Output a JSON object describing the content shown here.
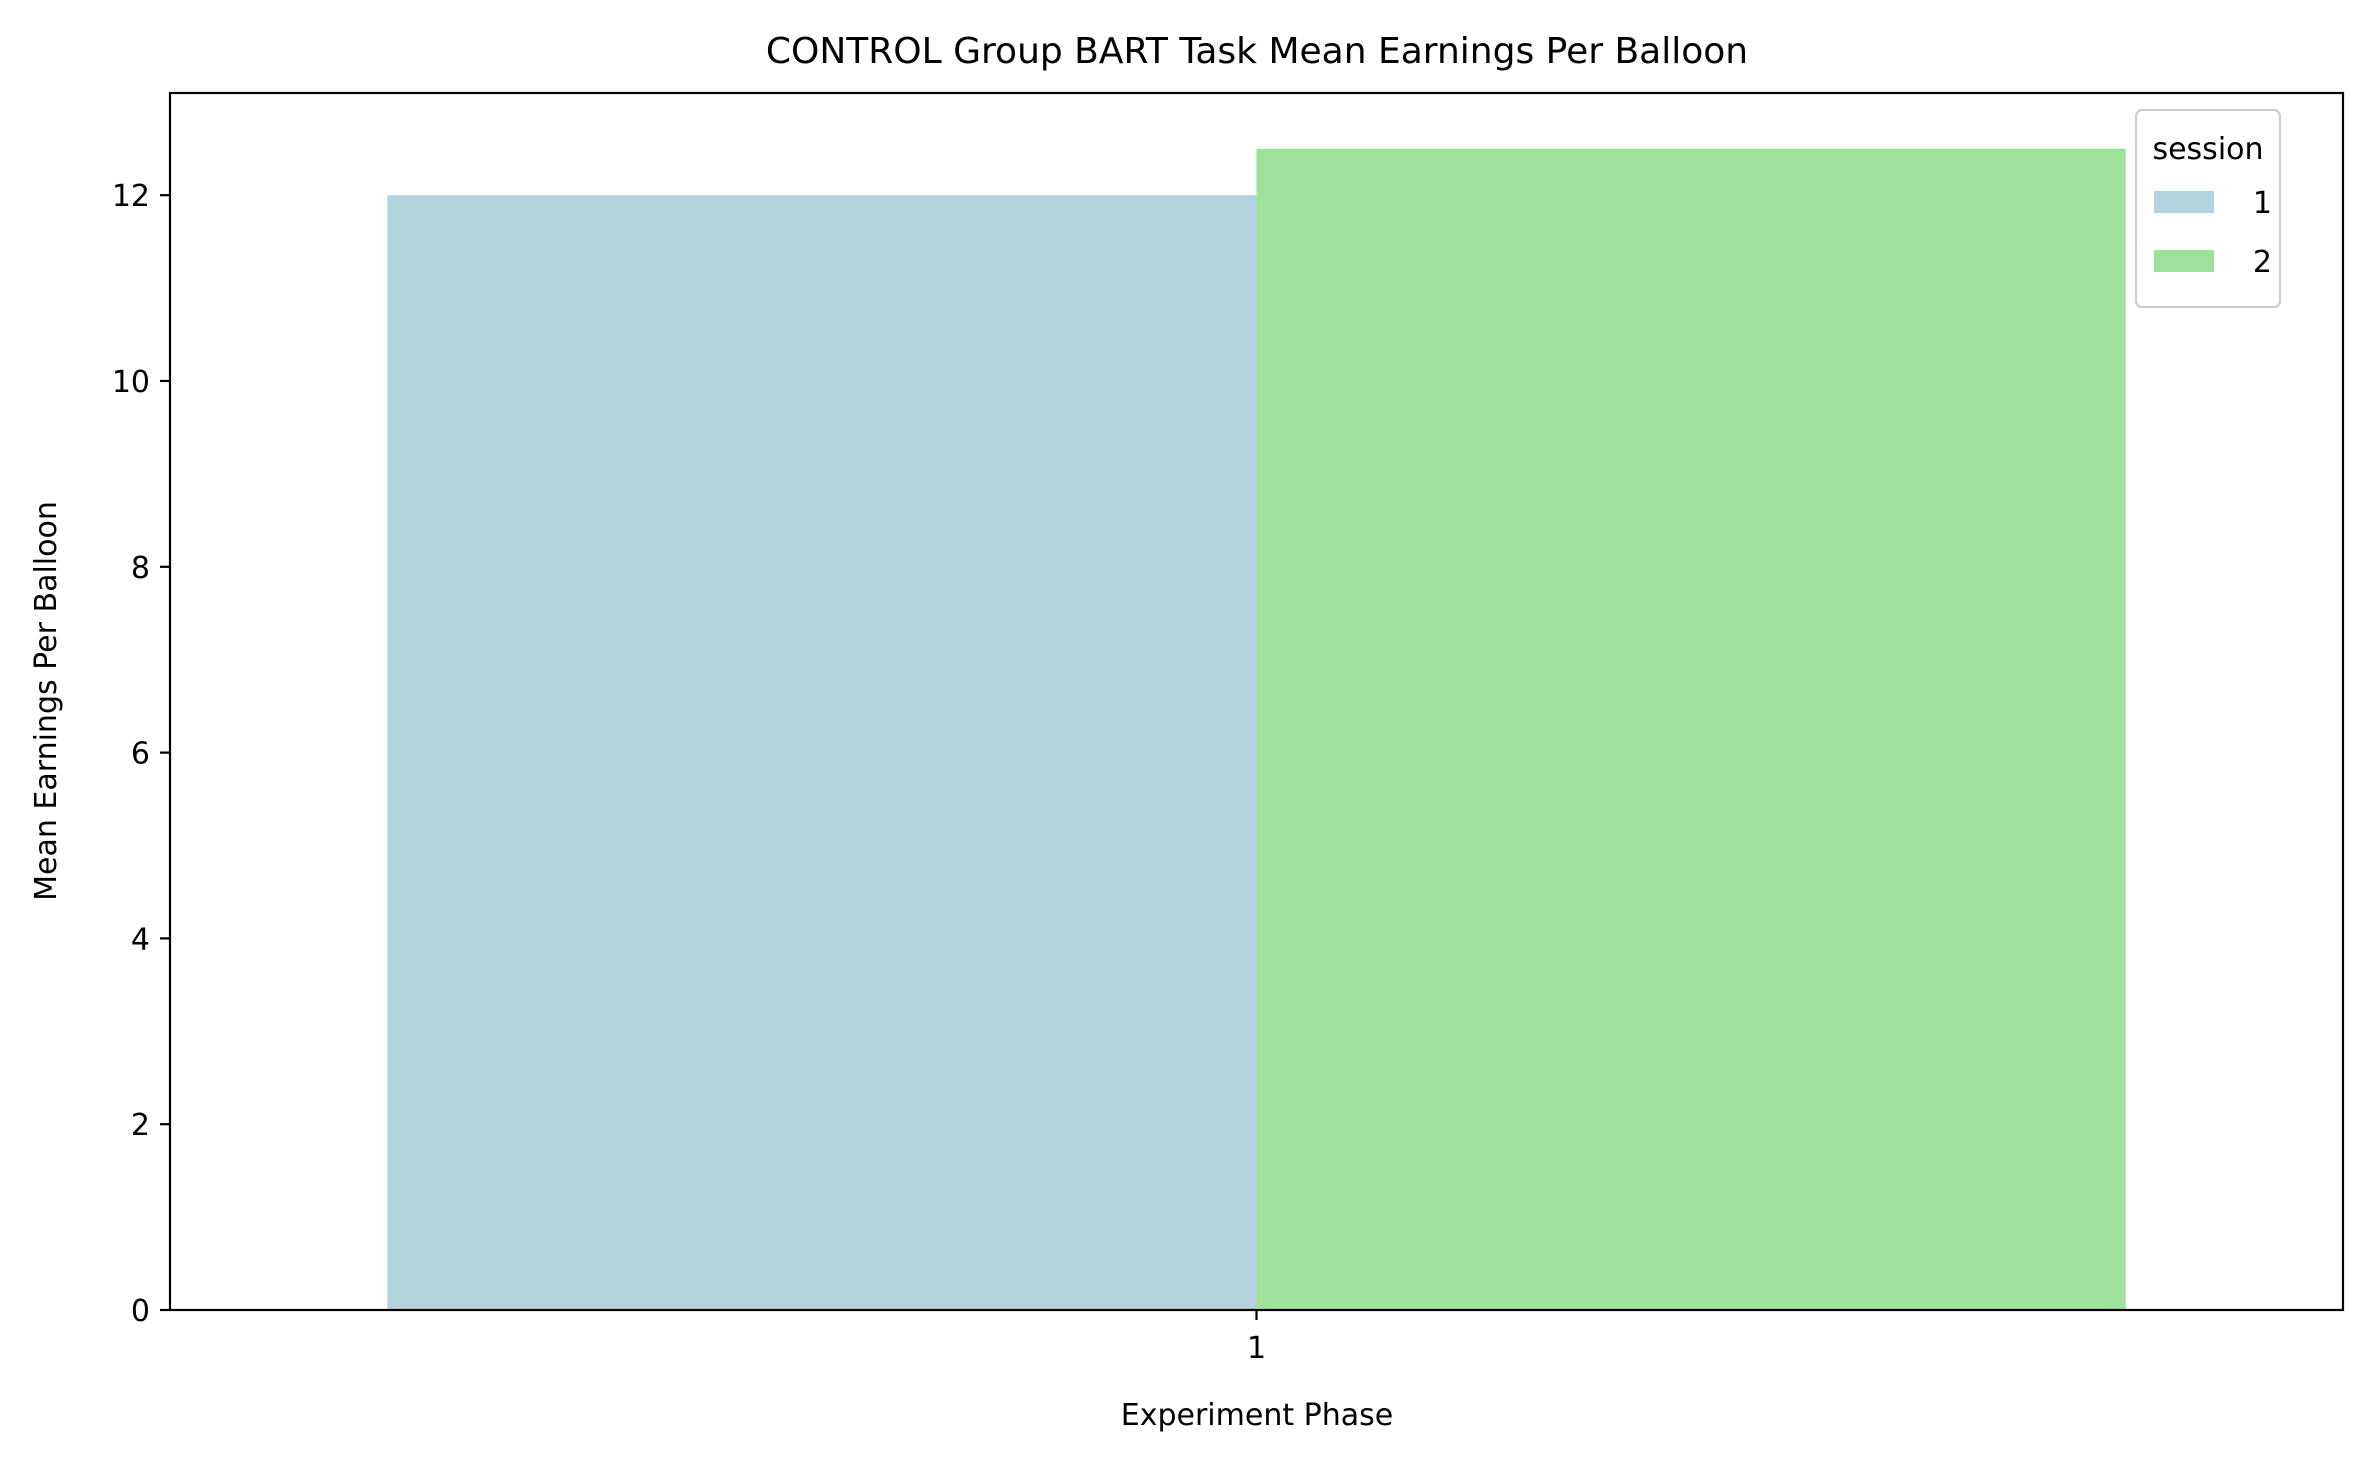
{
  "chart_data": {
    "type": "bar",
    "title": "CONTROL Group BART Task Mean Earnings Per Balloon",
    "xlabel": "Experiment Phase",
    "ylabel": "Mean Earnings Per Balloon",
    "categories": [
      "1"
    ],
    "series": [
      {
        "name": "1",
        "values": [
          12.0
        ],
        "color": "#b3d4df"
      },
      {
        "name": "2",
        "values": [
          12.5
        ],
        "color": "#9de19b"
      }
    ],
    "ylim": [
      0,
      13.1
    ],
    "yticks": [
      0,
      2,
      4,
      6,
      8,
      10,
      12
    ],
    "grid": false,
    "legend": {
      "title": "session",
      "position": "top-right"
    }
  }
}
